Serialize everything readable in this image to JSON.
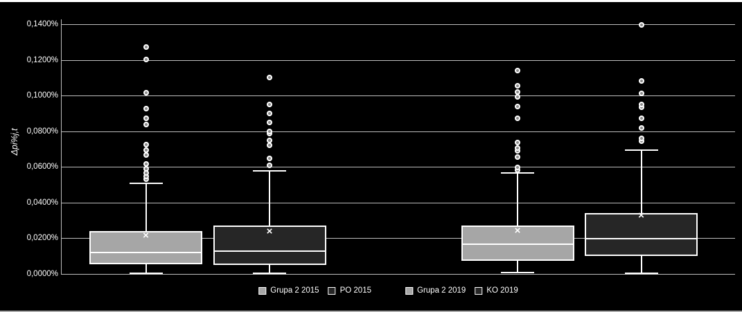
{
  "colors": {
    "background": "#000000",
    "gridline": "#bfbfbf",
    "text": "#ffffff",
    "box_gray": "#a6a6a6",
    "box_dark": "#262626",
    "box_border": "#ffffff"
  },
  "chart_data": {
    "type": "boxplot",
    "title": "",
    "xlabel": "",
    "ylabel": "Δpi%j,t",
    "ylim": [
      0,
      0.14
    ],
    "y_unit": "percent",
    "grid": true,
    "legend_position": "bottom",
    "y_tick_values": [
      0.14,
      0.12,
      0.1,
      0.08,
      0.06,
      0.04,
      0.02,
      0.0
    ],
    "y_tick_labels": [
      "0,1400%",
      "0,1200%",
      "0,1000%",
      "0,0800%",
      "0,0600%",
      "0,0400%",
      "0,0200%",
      "0,0000%"
    ],
    "series": [
      {
        "name": "Grupa 2 2015",
        "group": "2015",
        "fill": "#a6a6a6",
        "q1": 0.0054,
        "median": 0.012,
        "q3": 0.024,
        "mean": 0.0213,
        "whisker_low": 0.0004,
        "whisker_high": 0.0508,
        "outliers": [
          0.0531,
          0.0547,
          0.0566,
          0.059,
          0.0617,
          0.0667,
          0.0694,
          0.0725,
          0.0838,
          0.0873,
          0.0927,
          0.1016,
          0.1202,
          0.1272
        ]
      },
      {
        "name": "PO 2015",
        "group": "2015",
        "fill": "#262626",
        "q1": 0.005,
        "median": 0.0128,
        "q3": 0.0271,
        "mean": 0.0237,
        "whisker_low": 0.0004,
        "whisker_high": 0.0578,
        "outliers": [
          0.0608,
          0.0647,
          0.0721,
          0.0748,
          0.0787,
          0.0799,
          0.0849,
          0.09,
          0.095,
          0.1101
        ]
      },
      {
        "name": "Grupa 2 2019",
        "group": "2019",
        "fill": "#a6a6a6",
        "q1": 0.0074,
        "median": 0.0167,
        "q3": 0.0271,
        "mean": 0.024,
        "whisker_low": 0.0008,
        "whisker_high": 0.0566,
        "outliers": [
          0.0582,
          0.0597,
          0.0655,
          0.069,
          0.0706,
          0.0737,
          0.0873,
          0.0938,
          0.0993,
          0.102,
          0.1055,
          0.114
        ]
      },
      {
        "name": "KO 2019",
        "group": "2019",
        "fill": "#262626",
        "q1": 0.0101,
        "median": 0.0198,
        "q3": 0.0341,
        "mean": 0.0326,
        "whisker_low": 0.0004,
        "whisker_high": 0.0694,
        "outliers": [
          0.0745,
          0.076,
          0.0818,
          0.0873,
          0.0935,
          0.095,
          0.1012,
          0.1082,
          0.1396
        ]
      }
    ]
  }
}
